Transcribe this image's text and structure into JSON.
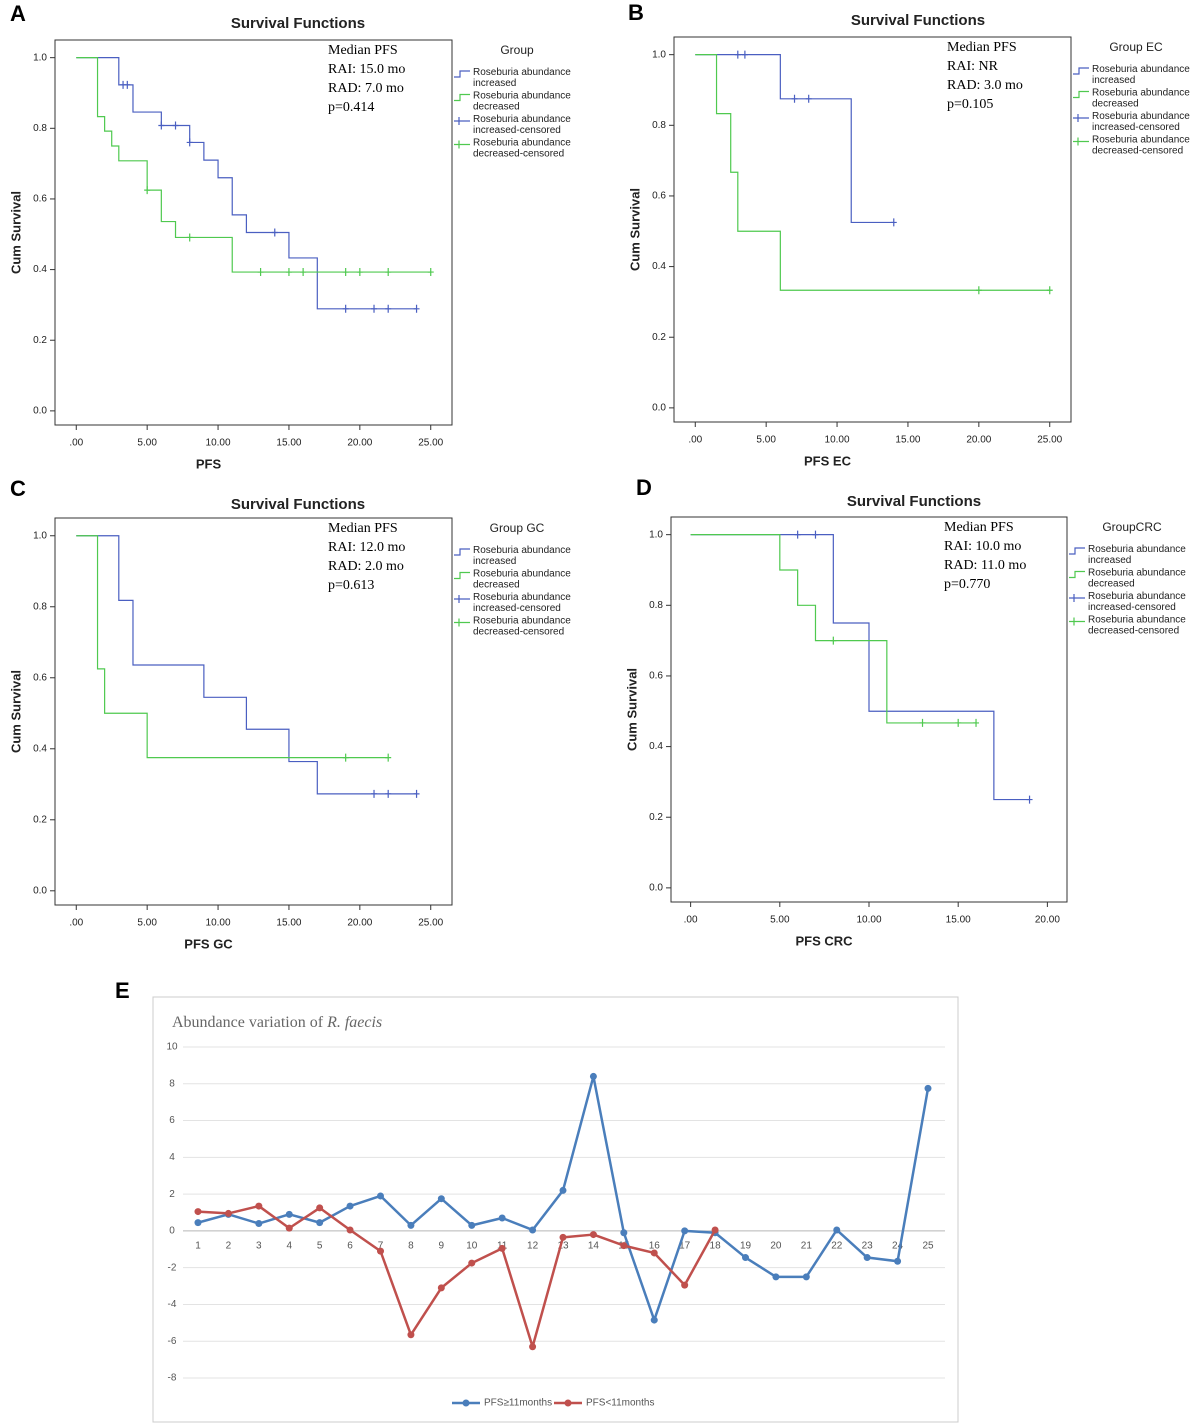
{
  "chart_data": [
    {
      "type": "survival",
      "panel": "A",
      "title": "Survival Functions",
      "annotations": [
        "Median PFS",
        "RAI: 15.0 mo",
        "RAD: 7.0 mo",
        "p=0.414"
      ],
      "legend_title": "Group",
      "x_label": "PFS",
      "y_label": "Cum Survival",
      "xlim": [
        -1.5,
        26.5
      ],
      "ylim": [
        -0.04,
        1.05
      ],
      "xticks": [
        {
          "value": 0,
          "label": ".00"
        },
        {
          "value": 5,
          "label": "5.00"
        },
        {
          "value": 10,
          "label": "10.00"
        },
        {
          "value": 15,
          "label": "15.00"
        },
        {
          "value": 20,
          "label": "20.00"
        },
        {
          "value": 25,
          "label": "25.00"
        }
      ],
      "yticks": [
        {
          "value": 0,
          "label": "0.0"
        },
        0.2,
        0.4,
        0.6,
        0.8,
        {
          "value": 1,
          "label": "1.0"
        }
      ],
      "series": [
        {
          "name": "Roseburia abundance increased",
          "color": "#4a5fc1",
          "x": [
            0,
            3,
            4,
            6,
            8,
            9,
            10,
            11,
            12,
            15,
            17,
            24
          ],
          "values": [
            1,
            0.923,
            0.846,
            0.808,
            0.76,
            0.71,
            0.66,
            0.555,
            0.505,
            0.433,
            0.289,
            0.289
          ]
        },
        {
          "name": "Roseburia abundance decreased",
          "color": "#4fc94f",
          "x": [
            0,
            1.5,
            2,
            2.5,
            3,
            5,
            6,
            7,
            11,
            25
          ],
          "values": [
            1,
            0.833,
            0.792,
            0.75,
            0.708,
            0.625,
            0.536,
            0.491,
            0.393,
            0.393
          ]
        },
        {
          "name": "Roseburia abundance increased-censored",
          "color": "#4a5fc1",
          "marker": "plus",
          "x": [
            3.3,
            3.6,
            6,
            7,
            8,
            14,
            19,
            21,
            22,
            24
          ],
          "values": [
            0.923,
            0.923,
            0.808,
            0.808,
            0.76,
            0.505,
            0.289,
            0.289,
            0.289,
            0.289
          ]
        },
        {
          "name": "Roseburia abundance decreased-censored",
          "color": "#4fc94f",
          "marker": "plus",
          "x": [
            5,
            8,
            13,
            15,
            16,
            19,
            20,
            22,
            25
          ],
          "values": [
            0.625,
            0.491,
            0.393,
            0.393,
            0.393,
            0.393,
            0.393,
            0.393,
            0.393
          ]
        }
      ]
    },
    {
      "type": "survival",
      "panel": "B",
      "title": "Survival Functions",
      "annotations": [
        "Median PFS",
        "RAI: NR",
        "RAD: 3.0 mo",
        "p=0.105"
      ],
      "legend_title": "Group EC",
      "x_label": "PFS EC",
      "y_label": "Cum Survival",
      "xlim": [
        -1.5,
        26.5
      ],
      "ylim": [
        -0.04,
        1.05
      ],
      "xticks": [
        {
          "value": 0,
          "label": ".00"
        },
        {
          "value": 5,
          "label": "5.00"
        },
        {
          "value": 10,
          "label": "10.00"
        },
        {
          "value": 15,
          "label": "15.00"
        },
        {
          "value": 20,
          "label": "20.00"
        },
        {
          "value": 25,
          "label": "25.00"
        }
      ],
      "yticks": [
        {
          "value": 0,
          "label": "0.0"
        },
        0.2,
        0.4,
        0.6,
        0.8,
        {
          "value": 1,
          "label": "1.0"
        }
      ],
      "series": [
        {
          "name": "Roseburia abundance increased",
          "color": "#4a5fc1",
          "x": [
            0,
            6,
            11,
            14
          ],
          "values": [
            1,
            0.875,
            0.525,
            0.525
          ]
        },
        {
          "name": "Roseburia abundance decreased",
          "color": "#4fc94f",
          "x": [
            0,
            1.5,
            2.5,
            3,
            6,
            25
          ],
          "values": [
            1,
            0.833,
            0.667,
            0.5,
            0.333,
            0.333
          ]
        },
        {
          "name": "Roseburia abundance increased-censored",
          "color": "#4a5fc1",
          "marker": "plus",
          "x": [
            3,
            3.5,
            7,
            8,
            14
          ],
          "values": [
            1,
            1,
            0.875,
            0.875,
            0.525
          ]
        },
        {
          "name": "Roseburia abundance decreased-censored",
          "color": "#4fc94f",
          "marker": "plus",
          "x": [
            20,
            25
          ],
          "values": [
            0.333,
            0.333
          ]
        }
      ]
    },
    {
      "type": "survival",
      "panel": "C",
      "title": "Survival Functions",
      "annotations": [
        "Median PFS",
        "RAI: 12.0 mo",
        "RAD: 2.0 mo",
        "p=0.613"
      ],
      "legend_title": "Group GC",
      "x_label": "PFS GC",
      "y_label": "Cum Survival",
      "xlim": [
        -1.5,
        26.5
      ],
      "ylim": [
        -0.04,
        1.05
      ],
      "xticks": [
        {
          "value": 0,
          "label": ".00"
        },
        {
          "value": 5,
          "label": "5.00"
        },
        {
          "value": 10,
          "label": "10.00"
        },
        {
          "value": 15,
          "label": "15.00"
        },
        {
          "value": 20,
          "label": "20.00"
        },
        {
          "value": 25,
          "label": "25.00"
        }
      ],
      "yticks": [
        {
          "value": 0,
          "label": "0.0"
        },
        0.2,
        0.4,
        0.6,
        0.8,
        {
          "value": 1,
          "label": "1.0"
        }
      ],
      "series": [
        {
          "name": "Roseburia abundance increased",
          "color": "#4a5fc1",
          "x": [
            0,
            3,
            4,
            9,
            12,
            15,
            17,
            24
          ],
          "values": [
            1,
            0.818,
            0.636,
            0.545,
            0.455,
            0.364,
            0.273,
            0.273
          ]
        },
        {
          "name": "Roseburia abundance decreased",
          "color": "#4fc94f",
          "x": [
            0,
            1.5,
            2,
            5,
            22
          ],
          "values": [
            1,
            0.625,
            0.5,
            0.375,
            0.375
          ]
        },
        {
          "name": "Roseburia abundance increased-censored",
          "color": "#4a5fc1",
          "marker": "plus",
          "x": [
            21,
            22,
            24
          ],
          "values": [
            0.273,
            0.273,
            0.273
          ]
        },
        {
          "name": "Roseburia abundance decreased-censored",
          "color": "#4fc94f",
          "marker": "plus",
          "x": [
            19,
            22
          ],
          "values": [
            0.375,
            0.375
          ]
        }
      ]
    },
    {
      "type": "survival",
      "panel": "D",
      "title": "Survival Functions",
      "annotations": [
        "Median PFS",
        "RAI: 10.0 mo",
        "RAD: 11.0 mo",
        "p=0.770"
      ],
      "legend_title": "GroupCRC",
      "x_label": "PFS CRC",
      "y_label": "Cum Survival",
      "xlim": [
        -1.1,
        21.1
      ],
      "ylim": [
        -0.04,
        1.05
      ],
      "xticks": [
        {
          "value": 0,
          "label": ".00"
        },
        {
          "value": 5,
          "label": "5.00"
        },
        {
          "value": 10,
          "label": "10.00"
        },
        {
          "value": 15,
          "label": "15.00"
        },
        {
          "value": 20,
          "label": "20.00"
        }
      ],
      "yticks": [
        {
          "value": 0,
          "label": "0.0"
        },
        0.2,
        0.4,
        0.6,
        0.8,
        {
          "value": 1,
          "label": "1.0"
        }
      ],
      "series": [
        {
          "name": "Roseburia abundance increased",
          "color": "#4a5fc1",
          "x": [
            0,
            8,
            10,
            17,
            19
          ],
          "values": [
            1,
            0.75,
            0.5,
            0.25,
            0.25
          ]
        },
        {
          "name": "Roseburia abundance decreased",
          "color": "#4fc94f",
          "x": [
            0,
            5,
            6,
            7,
            11,
            16
          ],
          "values": [
            1,
            0.9,
            0.8,
            0.7,
            0.467,
            0.467
          ]
        },
        {
          "name": "Roseburia abundance increased-censored",
          "color": "#4a5fc1",
          "marker": "plus",
          "x": [
            6,
            7,
            19
          ],
          "values": [
            1,
            1,
            0.25
          ]
        },
        {
          "name": "Roseburia abundance decreased-censored",
          "color": "#4fc94f",
          "marker": "plus",
          "x": [
            8,
            13,
            15,
            16
          ],
          "values": [
            0.7,
            0.467,
            0.467,
            0.467
          ]
        }
      ]
    },
    {
      "type": "line",
      "panel": "E",
      "title": "Abundance variation of",
      "title_italic": "R. faecis",
      "categories": [
        "1",
        "2",
        "3",
        "4",
        "5",
        "6",
        "7",
        "8",
        "9",
        "10",
        "11",
        "12",
        "13",
        "14",
        "15",
        "16",
        "17",
        "18",
        "19",
        "20",
        "21",
        "22",
        "23",
        "24",
        "25"
      ],
      "ylim": [
        -8,
        10
      ],
      "yticks": [
        10,
        8,
        6,
        4,
        2,
        0,
        -2,
        -4,
        -6,
        -8
      ],
      "grid": true,
      "legend": "bottom",
      "series": [
        {
          "name": "PFS≥11months",
          "color": "#4a7ebb",
          "values": [
            0.45,
            0.9,
            0.4,
            0.9,
            0.45,
            1.35,
            1.9,
            0.3,
            1.75,
            0.3,
            0.7,
            0.05,
            2.2,
            8.4,
            -0.1,
            -4.85,
            0,
            -0.1,
            -1.45,
            -2.5,
            -2.5,
            0.05,
            -1.45,
            -1.65,
            7.75
          ]
        },
        {
          "name": "PFS<11months",
          "color": "#c0504d",
          "values": [
            1.05,
            0.95,
            1.35,
            0.15,
            1.25,
            0.05,
            -1.1,
            -5.65,
            -3.1,
            -1.75,
            -0.95,
            -6.3,
            -0.35,
            -0.2,
            -0.8,
            -1.2,
            -2.95,
            0.05,
            null,
            null,
            null,
            null,
            null,
            null,
            null
          ]
        }
      ]
    }
  ]
}
